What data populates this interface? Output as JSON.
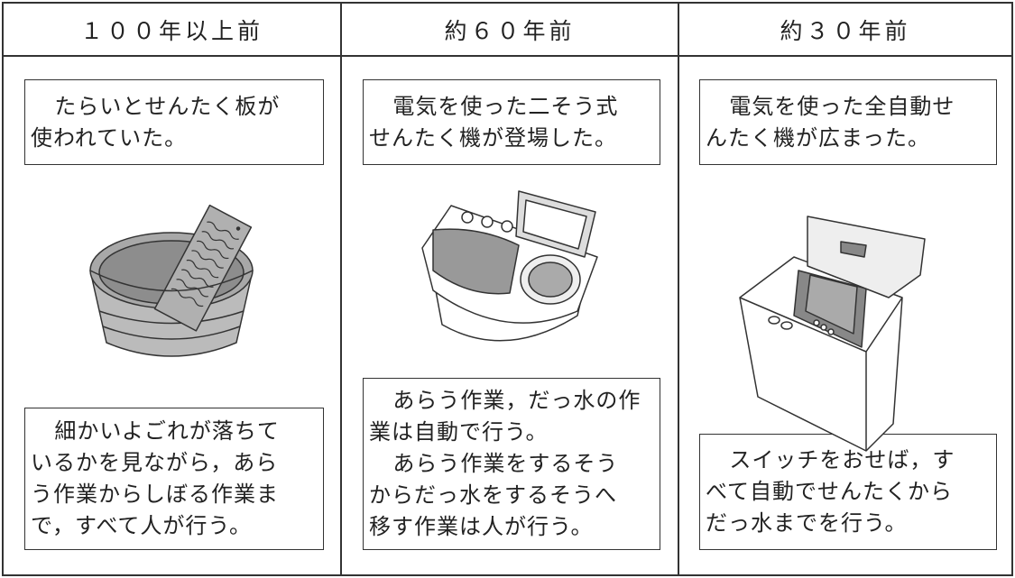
{
  "columns": [
    {
      "header": "１００年以上前",
      "top": [
        [
          "たらいとせんたく板が",
          "使われていた。"
        ]
      ],
      "bottom": [
        [
          "細かいよごれが落ちて",
          "いるかを見ながら，あら",
          "う作業からしぼる作業ま",
          "で，すべて人が行う。"
        ]
      ]
    },
    {
      "header": "約６０年前",
      "top": [
        [
          "電気を使った二そう式",
          "せんたく機が登場した。"
        ]
      ],
      "bottom": [
        [
          "あらう作業，だっ水の作",
          "業は自動で行う。"
        ],
        [
          "あらう作業をするそう",
          "からだっ水をするそうへ",
          "移す作業は人が行う。"
        ]
      ]
    },
    {
      "header": "約３０年前",
      "top": [
        [
          "電気を使った全自動せ",
          "んたく機が広まった。"
        ]
      ],
      "bottom": [
        [
          "スイッチをおせば，す",
          "べて自動でせんたくから",
          "だっ水までを行う。"
        ]
      ]
    }
  ]
}
